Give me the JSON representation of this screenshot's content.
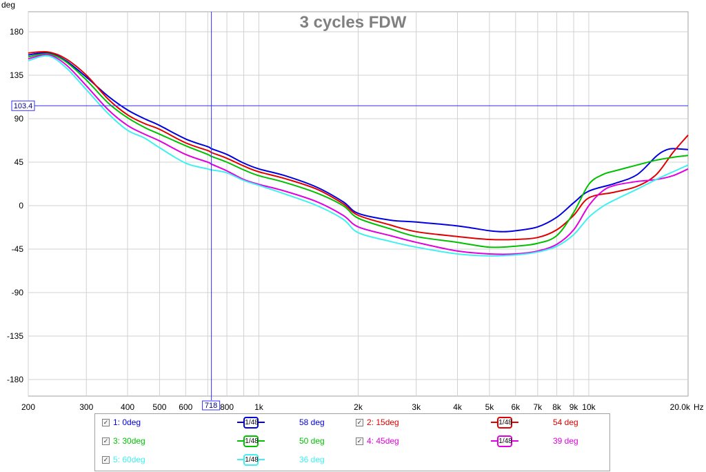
{
  "chart_data": {
    "type": "line",
    "title": "3 cycles FDW",
    "ylabel": "deg",
    "xunit": "Hz",
    "xscale": "log",
    "xlim": [
      200,
      20000
    ],
    "ylim": [
      -200,
      200
    ],
    "yticks": [
      180,
      135,
      90,
      45,
      0,
      -45,
      -90,
      -135,
      -180
    ],
    "xticks": [
      {
        "v": 200,
        "label": "200"
      },
      {
        "v": 300,
        "label": "300"
      },
      {
        "v": 400,
        "label": "400"
      },
      {
        "v": 500,
        "label": "500"
      },
      {
        "v": 600,
        "label": "600"
      },
      {
        "v": 800,
        "label": "800"
      },
      {
        "v": 1000,
        "label": "1k"
      },
      {
        "v": 2000,
        "label": "2k"
      },
      {
        "v": 3000,
        "label": "3k"
      },
      {
        "v": 4000,
        "label": "4k"
      },
      {
        "v": 5000,
        "label": "5k"
      },
      {
        "v": 6000,
        "label": "6k"
      },
      {
        "v": 7000,
        "label": "7k"
      },
      {
        "v": 8000,
        "label": "8k"
      },
      {
        "v": 9000,
        "label": "9k"
      },
      {
        "v": 10000,
        "label": "10k"
      },
      {
        "v": 20000,
        "label": "20.0k"
      }
    ],
    "grid": true,
    "cursor": {
      "x": 718,
      "x_label": "718",
      "y": 103.4,
      "y_label": "103.4"
    },
    "series": [
      {
        "name": "1: 0deg",
        "color": "#0000e0",
        "smoothing": "1/48",
        "value_label": "58 deg",
        "points": [
          [
            200,
            156
          ],
          [
            230,
            158
          ],
          [
            260,
            150
          ],
          [
            300,
            133
          ],
          [
            350,
            113
          ],
          [
            400,
            99
          ],
          [
            450,
            90
          ],
          [
            500,
            83
          ],
          [
            600,
            69
          ],
          [
            700,
            61
          ],
          [
            718,
            59
          ],
          [
            800,
            53
          ],
          [
            900,
            44
          ],
          [
            1000,
            38
          ],
          [
            1200,
            31
          ],
          [
            1500,
            19
          ],
          [
            1800,
            4
          ],
          [
            2000,
            -8
          ],
          [
            2500,
            -15
          ],
          [
            3000,
            -17
          ],
          [
            4000,
            -21
          ],
          [
            5000,
            -26
          ],
          [
            5500,
            -27
          ],
          [
            6000,
            -26
          ],
          [
            7000,
            -22
          ],
          [
            8000,
            -12
          ],
          [
            9000,
            3
          ],
          [
            10000,
            15
          ],
          [
            12000,
            23
          ],
          [
            14000,
            32
          ],
          [
            16000,
            51
          ],
          [
            17000,
            57
          ],
          [
            18000,
            59
          ],
          [
            20000,
            58
          ]
        ]
      },
      {
        "name": "2: 15deg",
        "color": "#e00000",
        "smoothing": "1/48",
        "value_label": "54 deg",
        "points": [
          [
            200,
            158
          ],
          [
            230,
            159
          ],
          [
            260,
            152
          ],
          [
            300,
            135
          ],
          [
            350,
            110
          ],
          [
            400,
            94
          ],
          [
            450,
            85
          ],
          [
            500,
            79
          ],
          [
            600,
            65
          ],
          [
            700,
            57
          ],
          [
            718,
            55
          ],
          [
            800,
            49
          ],
          [
            900,
            41
          ],
          [
            1000,
            35
          ],
          [
            1200,
            28
          ],
          [
            1500,
            17
          ],
          [
            1800,
            2
          ],
          [
            2000,
            -10
          ],
          [
            2500,
            -20
          ],
          [
            3000,
            -27
          ],
          [
            4000,
            -32
          ],
          [
            5000,
            -35
          ],
          [
            6000,
            -35
          ],
          [
            7000,
            -33
          ],
          [
            8000,
            -25
          ],
          [
            9000,
            -10
          ],
          [
            10000,
            8
          ],
          [
            12000,
            14
          ],
          [
            14000,
            20
          ],
          [
            16000,
            32
          ],
          [
            18000,
            55
          ],
          [
            20000,
            73
          ]
        ]
      },
      {
        "name": "3: 30deg",
        "color": "#00c000",
        "smoothing": "1/48",
        "value_label": "50 deg",
        "points": [
          [
            200,
            154
          ],
          [
            230,
            157
          ],
          [
            260,
            149
          ],
          [
            300,
            130
          ],
          [
            350,
            106
          ],
          [
            400,
            91
          ],
          [
            450,
            81
          ],
          [
            500,
            74
          ],
          [
            600,
            62
          ],
          [
            700,
            53
          ],
          [
            718,
            51
          ],
          [
            800,
            45
          ],
          [
            900,
            37
          ],
          [
            1000,
            31
          ],
          [
            1200,
            24
          ],
          [
            1500,
            13
          ],
          [
            1800,
            0
          ],
          [
            2000,
            -13
          ],
          [
            2500,
            -24
          ],
          [
            3000,
            -32
          ],
          [
            4000,
            -38
          ],
          [
            5000,
            -43
          ],
          [
            6000,
            -42
          ],
          [
            7000,
            -39
          ],
          [
            8000,
            -31
          ],
          [
            9000,
            -7
          ],
          [
            10000,
            22
          ],
          [
            11000,
            32
          ],
          [
            12000,
            36
          ],
          [
            14000,
            42
          ],
          [
            16000,
            47
          ],
          [
            18000,
            50
          ],
          [
            20000,
            52
          ]
        ]
      },
      {
        "name": "4: 45deg",
        "color": "#e000e0",
        "smoothing": "1/48",
        "value_label": "39 deg",
        "points": [
          [
            200,
            152
          ],
          [
            230,
            156
          ],
          [
            260,
            146
          ],
          [
            300,
            124
          ],
          [
            350,
            99
          ],
          [
            400,
            83
          ],
          [
            450,
            74
          ],
          [
            500,
            67
          ],
          [
            600,
            53
          ],
          [
            700,
            45
          ],
          [
            718,
            43
          ],
          [
            800,
            36
          ],
          [
            900,
            27
          ],
          [
            1000,
            22
          ],
          [
            1200,
            15
          ],
          [
            1500,
            4
          ],
          [
            1800,
            -10
          ],
          [
            2000,
            -22
          ],
          [
            2500,
            -31
          ],
          [
            3000,
            -38
          ],
          [
            4000,
            -47
          ],
          [
            5000,
            -50
          ],
          [
            6000,
            -50
          ],
          [
            7000,
            -47
          ],
          [
            8000,
            -40
          ],
          [
            9000,
            -25
          ],
          [
            10000,
            0
          ],
          [
            11000,
            15
          ],
          [
            12000,
            21
          ],
          [
            14000,
            25
          ],
          [
            16000,
            27
          ],
          [
            18000,
            31
          ],
          [
            20000,
            38
          ]
        ]
      },
      {
        "name": "5: 60deg",
        "color": "#40f0f0",
        "smoothing": "1/48",
        "value_label": "36 deg",
        "points": [
          [
            200,
            150
          ],
          [
            230,
            155
          ],
          [
            260,
            143
          ],
          [
            300,
            120
          ],
          [
            350,
            95
          ],
          [
            400,
            78
          ],
          [
            450,
            70
          ],
          [
            500,
            60
          ],
          [
            600,
            44
          ],
          [
            700,
            38
          ],
          [
            718,
            37
          ],
          [
            800,
            34
          ],
          [
            900,
            26
          ],
          [
            1000,
            21
          ],
          [
            1200,
            12
          ],
          [
            1500,
            0
          ],
          [
            1800,
            -14
          ],
          [
            2000,
            -28
          ],
          [
            2500,
            -37
          ],
          [
            3000,
            -43
          ],
          [
            4000,
            -50
          ],
          [
            5000,
            -52
          ],
          [
            6000,
            -51
          ],
          [
            7000,
            -48
          ],
          [
            8000,
            -42
          ],
          [
            9000,
            -30
          ],
          [
            10000,
            -12
          ],
          [
            11000,
            -1
          ],
          [
            12000,
            6
          ],
          [
            14000,
            17
          ],
          [
            16000,
            27
          ],
          [
            18000,
            35
          ],
          [
            20000,
            42
          ]
        ]
      }
    ]
  }
}
